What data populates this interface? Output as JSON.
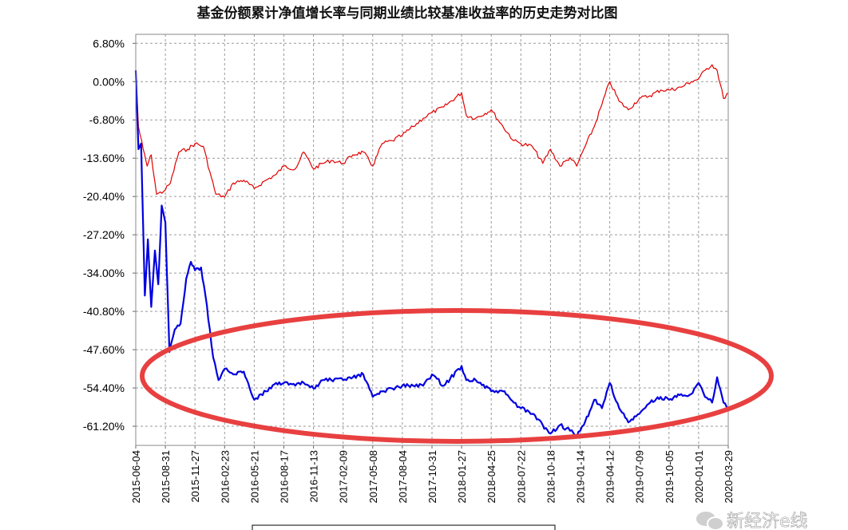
{
  "chart_data": {
    "type": "line",
    "title": "基金份额累计净值增长率与同期业绩比较基准收益率的历史走势对比图",
    "y_unit": "%",
    "ylim": [
      -64.6,
      8.4
    ],
    "y_ticks": [
      "6.80%",
      "0.00%",
      "-6.80%",
      "-13.60%",
      "-20.40%",
      "-27.20%",
      "-34.00%",
      "-40.80%",
      "-47.60%",
      "-54.40%",
      "-61.20%"
    ],
    "y_tick_values": [
      6.8,
      0,
      -6.8,
      -13.6,
      -20.4,
      -27.2,
      -34.0,
      -40.8,
      -47.6,
      -54.4,
      -61.2
    ],
    "x_ticks": [
      "2015-06-04",
      "2015-08-31",
      "2015-11-27",
      "2016-02-23",
      "2016-05-21",
      "2016-08-17",
      "2016-11-13",
      "2017-02-09",
      "2017-05-08",
      "2017-08-04",
      "2017-10-31",
      "2018-01-27",
      "2018-04-25",
      "2018-07-22",
      "2018-10-18",
      "2019-01-14",
      "2019-04-12",
      "2019-07-09",
      "2019-10-05",
      "2020-01-01",
      "2020-03-29"
    ],
    "grid": true,
    "series": [
      {
        "color": "#e00000",
        "x": [
          "2015-06-04",
          "2015-06-12",
          "2015-06-26",
          "2015-07-08",
          "2015-07-20",
          "2015-08-05",
          "2015-08-26",
          "2015-09-15",
          "2015-10-10",
          "2015-11-05",
          "2015-11-27",
          "2015-12-22",
          "2016-01-10",
          "2016-01-28",
          "2016-02-23",
          "2016-03-20",
          "2016-04-20",
          "2016-05-21",
          "2016-06-25",
          "2016-07-25",
          "2016-08-17",
          "2016-09-20",
          "2016-10-15",
          "2016-11-13",
          "2016-12-10",
          "2017-01-05",
          "2017-02-09",
          "2017-03-10",
          "2017-04-10",
          "2017-05-08",
          "2017-06-05",
          "2017-07-05",
          "2017-08-04",
          "2017-09-05",
          "2017-10-05",
          "2017-10-31",
          "2017-12-05",
          "2018-01-27",
          "2018-02-10",
          "2018-03-10",
          "2018-04-25",
          "2018-05-30",
          "2018-07-01",
          "2018-07-22",
          "2018-08-25",
          "2018-09-25",
          "2018-10-18",
          "2018-11-15",
          "2018-12-15",
          "2019-01-04",
          "2019-01-25",
          "2019-02-25",
          "2019-03-20",
          "2019-04-12",
          "2019-05-10",
          "2019-06-06",
          "2019-07-09",
          "2019-08-10",
          "2019-09-10",
          "2019-10-05",
          "2019-11-10",
          "2019-12-10",
          "2020-01-01",
          "2020-01-20",
          "2020-02-10",
          "2020-02-25",
          "2020-03-15",
          "2020-03-29"
        ],
        "values": [
          2.0,
          -8.0,
          -12.0,
          -15.0,
          -13.0,
          -20.0,
          -19.5,
          -18.0,
          -12.5,
          -12.0,
          -11.0,
          -11.5,
          -16.0,
          -20.0,
          -20.5,
          -18.0,
          -17.5,
          -19.0,
          -17.5,
          -16.5,
          -15.0,
          -15.5,
          -12.5,
          -15.5,
          -14.5,
          -14.0,
          -14.5,
          -13.0,
          -12.5,
          -15.0,
          -11.0,
          -10.5,
          -9.5,
          -8.0,
          -6.5,
          -5.5,
          -4.5,
          -2.0,
          -6.0,
          -6.5,
          -5.0,
          -8.0,
          -10.5,
          -11.0,
          -11.5,
          -14.5,
          -12.0,
          -15.0,
          -13.5,
          -15.0,
          -12.0,
          -8.0,
          -4.0,
          0.0,
          -3.5,
          -5.0,
          -3.0,
          -2.5,
          -1.5,
          -1.5,
          -1.0,
          0.0,
          0.5,
          2.0,
          3.0,
          2.0,
          -3.0,
          -2.0
        ]
      },
      {
        "color": "#0000e0",
        "x": [
          "2015-06-04",
          "2015-06-12",
          "2015-06-20",
          "2015-07-01",
          "2015-07-10",
          "2015-07-20",
          "2015-07-31",
          "2015-08-10",
          "2015-08-20",
          "2015-08-31",
          "2015-09-12",
          "2015-09-28",
          "2015-10-15",
          "2015-11-01",
          "2015-11-15",
          "2015-11-27",
          "2015-12-15",
          "2015-12-28",
          "2016-01-10",
          "2016-01-20",
          "2016-02-05",
          "2016-02-23",
          "2016-03-20",
          "2016-04-20",
          "2016-05-21",
          "2016-06-25",
          "2016-07-25",
          "2016-08-17",
          "2016-09-20",
          "2016-10-15",
          "2016-11-13",
          "2016-12-10",
          "2017-01-05",
          "2017-02-09",
          "2017-03-10",
          "2017-04-10",
          "2017-05-08",
          "2017-06-05",
          "2017-07-05",
          "2017-08-04",
          "2017-09-05",
          "2017-10-05",
          "2017-10-31",
          "2017-12-05",
          "2018-01-27",
          "2018-02-10",
          "2018-03-10",
          "2018-04-25",
          "2018-05-30",
          "2018-07-01",
          "2018-07-22",
          "2018-08-25",
          "2018-09-25",
          "2018-10-18",
          "2018-11-15",
          "2018-12-15",
          "2019-01-04",
          "2019-01-25",
          "2019-02-25",
          "2019-03-20",
          "2019-04-12",
          "2019-05-10",
          "2019-06-06",
          "2019-07-09",
          "2019-08-10",
          "2019-09-10",
          "2019-10-05",
          "2019-11-10",
          "2019-12-10",
          "2020-01-01",
          "2020-01-20",
          "2020-02-10",
          "2020-02-25",
          "2020-03-15",
          "2020-03-29"
        ],
        "values": [
          2.0,
          -12.0,
          -11.0,
          -38.0,
          -28.0,
          -40.0,
          -30.0,
          -36.0,
          -22.0,
          -25.0,
          -48.0,
          -44.0,
          -43.0,
          -35.0,
          -32.0,
          -33.5,
          -33.0,
          -38.0,
          -44.0,
          -49.0,
          -53.0,
          -51.0,
          -52.0,
          -51.5,
          -56.5,
          -55.0,
          -53.5,
          -53.5,
          -54.0,
          -53.5,
          -54.5,
          -53.0,
          -53.0,
          -53.0,
          -52.5,
          -52.0,
          -56.0,
          -55.0,
          -54.5,
          -54.0,
          -54.0,
          -54.0,
          -52.0,
          -54.0,
          -50.5,
          -53.0,
          -53.0,
          -55.0,
          -55.0,
          -57.0,
          -58.0,
          -59.0,
          -61.0,
          -62.5,
          -61.0,
          -62.0,
          -63.0,
          -61.0,
          -56.5,
          -58.0,
          -53.5,
          -58.0,
          -60.5,
          -59.0,
          -57.0,
          -56.0,
          -56.5,
          -55.5,
          -55.5,
          -53.5,
          -56.0,
          -57.0,
          -52.5,
          -57.0,
          -58.5
        ]
      }
    ],
    "annotation": {
      "shape": "ellipse",
      "color": "#e84040"
    }
  },
  "watermark": {
    "text": "新经济e线"
  }
}
